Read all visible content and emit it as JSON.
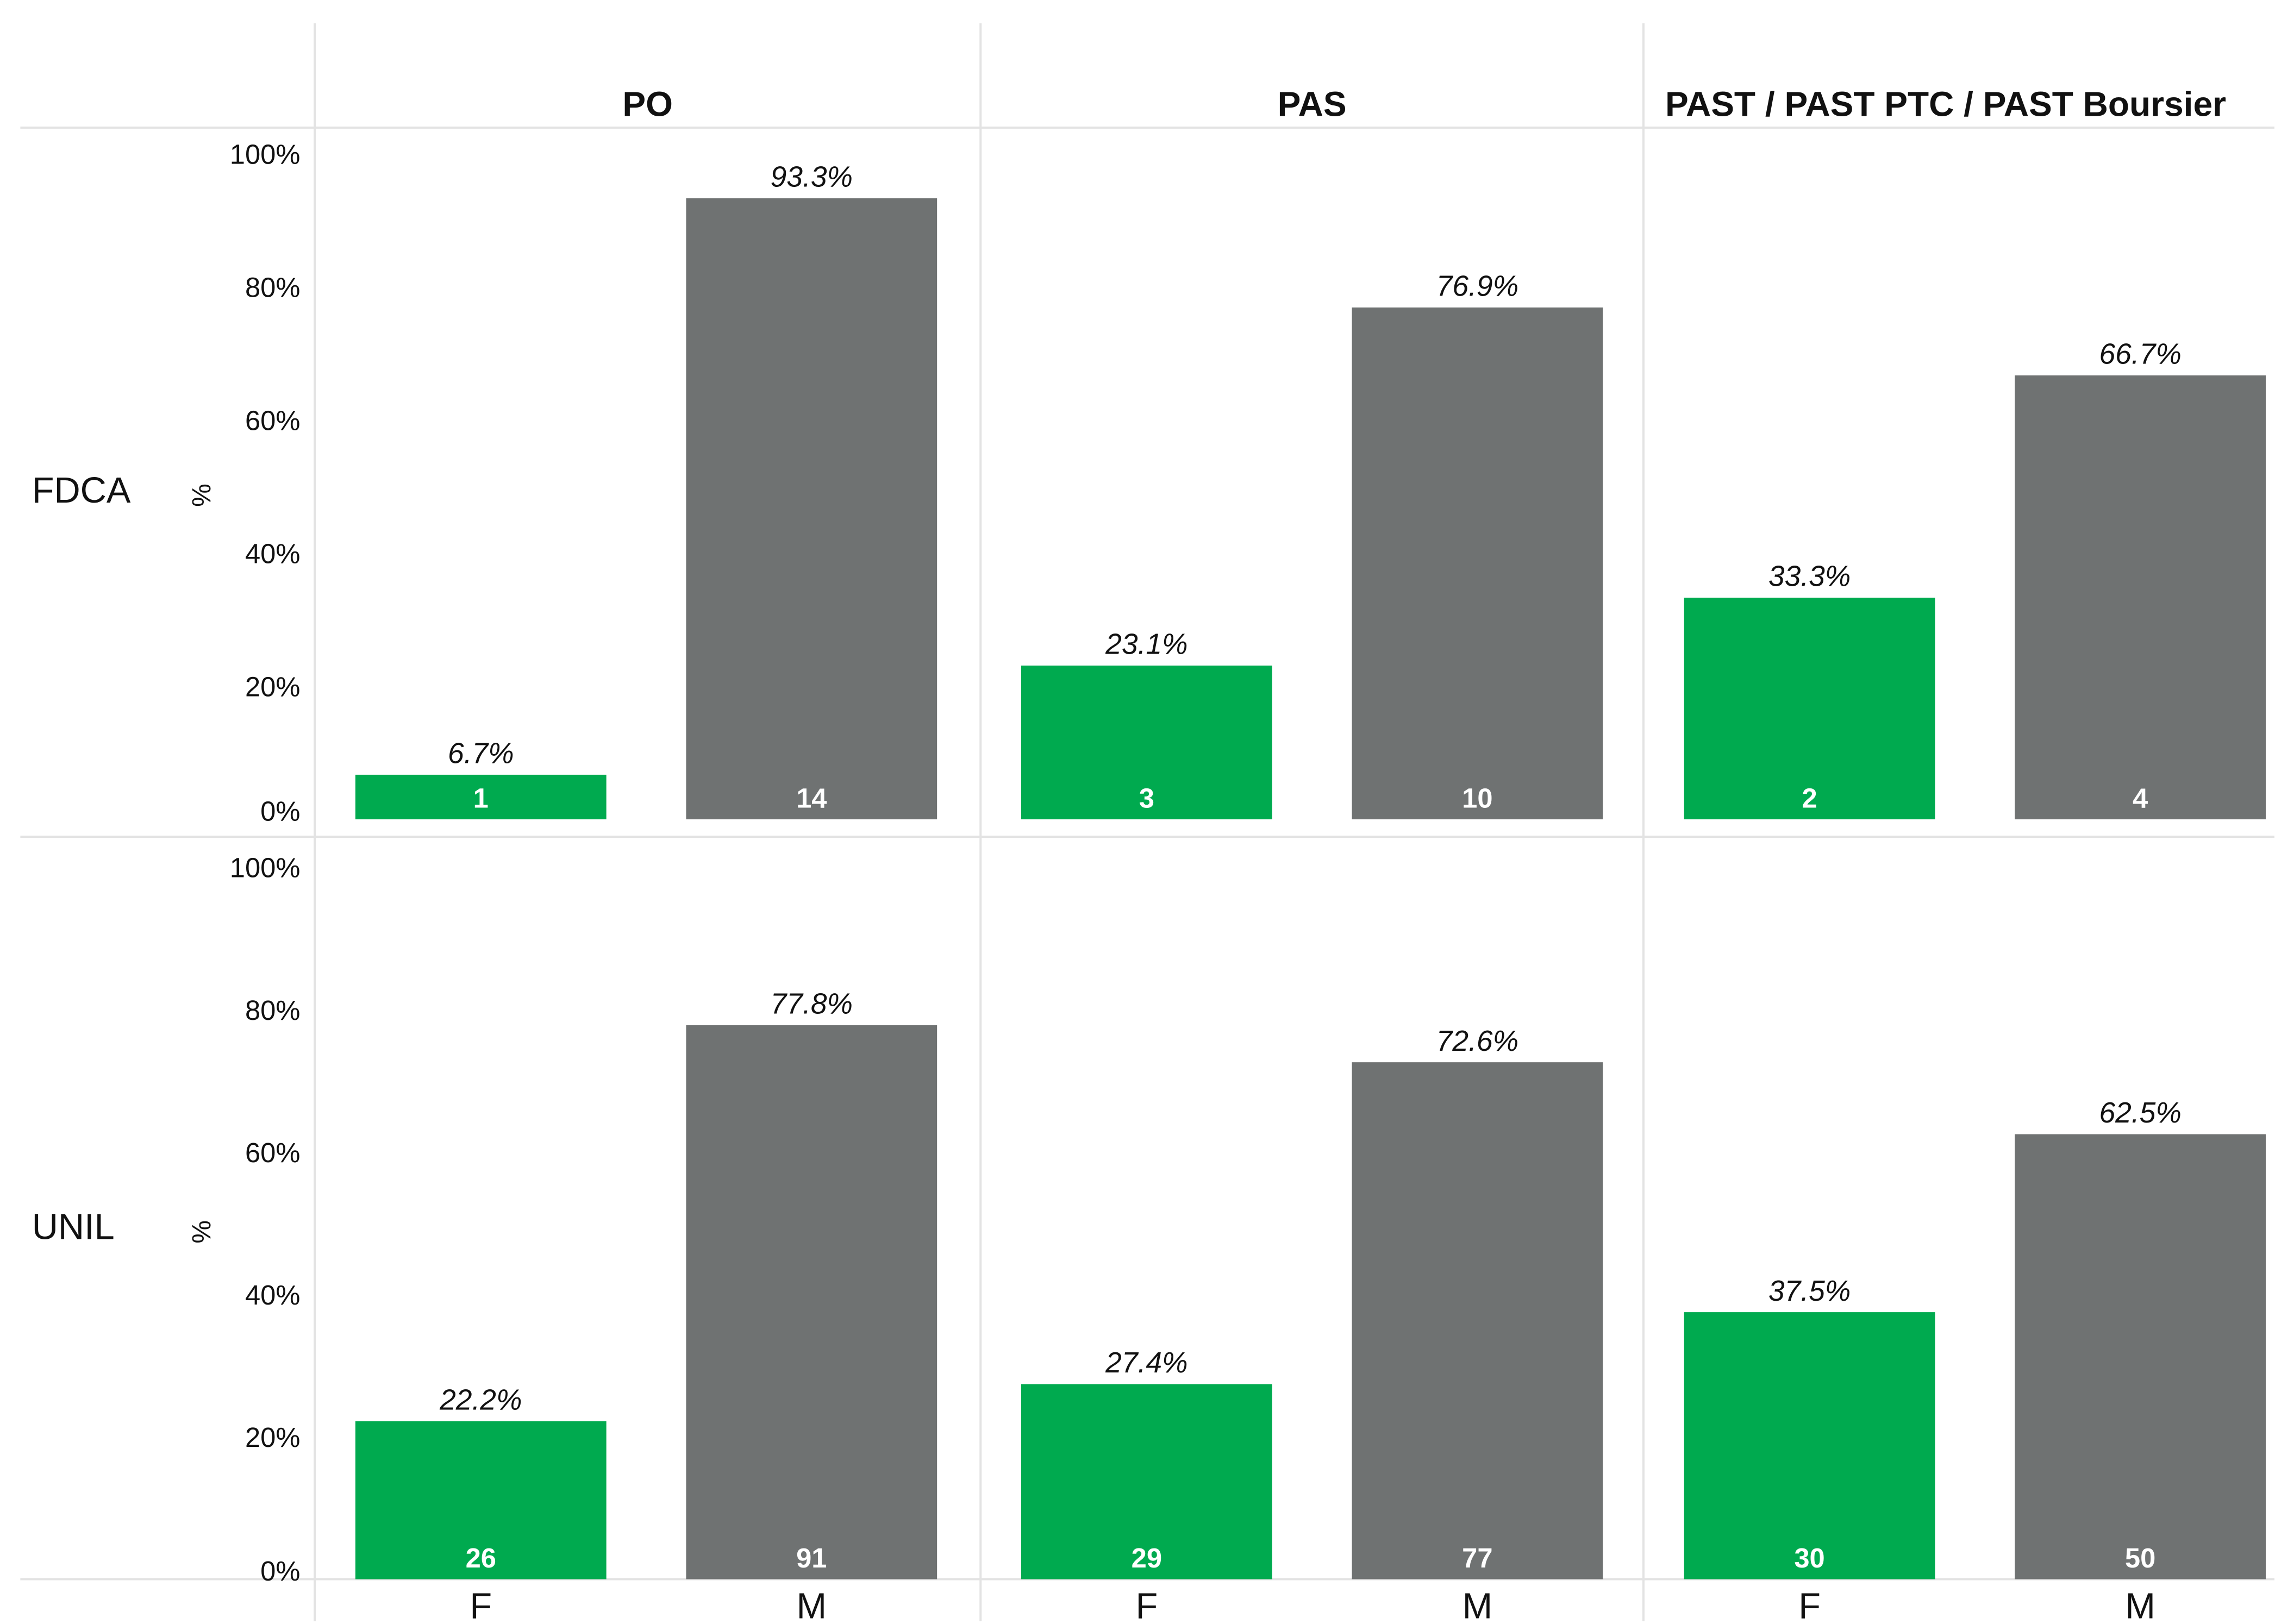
{
  "chart_data": {
    "type": "bar",
    "columns": [
      "PO",
      "PAS",
      "PAST / PAST PTC / PAST Boursier"
    ],
    "rows": [
      "FDCA",
      "UNIL"
    ],
    "categories": [
      "F",
      "M"
    ],
    "ylabel": "%",
    "yticks": [
      "0%",
      "20%",
      "40%",
      "60%",
      "80%",
      "100%"
    ],
    "ylim": [
      0,
      100
    ],
    "colors": {
      "F": "#00aa4f",
      "M": "#6f7272",
      "grid": "#e3e3e3",
      "text": "#111111",
      "count_text": "#ffffff"
    },
    "panels": [
      {
        "row": "FDCA",
        "column": "PO",
        "bars": [
          {
            "category": "F",
            "value": 6.7,
            "label": "6.7%",
            "count": "1"
          },
          {
            "category": "M",
            "value": 93.3,
            "label": "93.3%",
            "count": "14"
          }
        ]
      },
      {
        "row": "FDCA",
        "column": "PAS",
        "bars": [
          {
            "category": "F",
            "value": 23.1,
            "label": "23.1%",
            "count": "3"
          },
          {
            "category": "M",
            "value": 76.9,
            "label": "76.9%",
            "count": "10"
          }
        ]
      },
      {
        "row": "FDCA",
        "column": "PAST / PAST PTC / PAST Boursier",
        "bars": [
          {
            "category": "F",
            "value": 33.3,
            "label": "33.3%",
            "count": "2"
          },
          {
            "category": "M",
            "value": 66.7,
            "label": "66.7%",
            "count": "4"
          }
        ]
      },
      {
        "row": "UNIL",
        "column": "PO",
        "bars": [
          {
            "category": "F",
            "value": 22.2,
            "label": "22.2%",
            "count": "26"
          },
          {
            "category": "M",
            "value": 77.8,
            "label": "77.8%",
            "count": "91"
          }
        ]
      },
      {
        "row": "UNIL",
        "column": "PAS",
        "bars": [
          {
            "category": "F",
            "value": 27.4,
            "label": "27.4%",
            "count": "29"
          },
          {
            "category": "M",
            "value": 72.6,
            "label": "72.6%",
            "count": "77"
          }
        ]
      },
      {
        "row": "UNIL",
        "column": "PAST / PAST PTC / PAST Boursier",
        "bars": [
          {
            "category": "F",
            "value": 37.5,
            "label": "37.5%",
            "count": "30"
          },
          {
            "category": "M",
            "value": 62.5,
            "label": "62.5%",
            "count": "50"
          }
        ]
      }
    ]
  }
}
